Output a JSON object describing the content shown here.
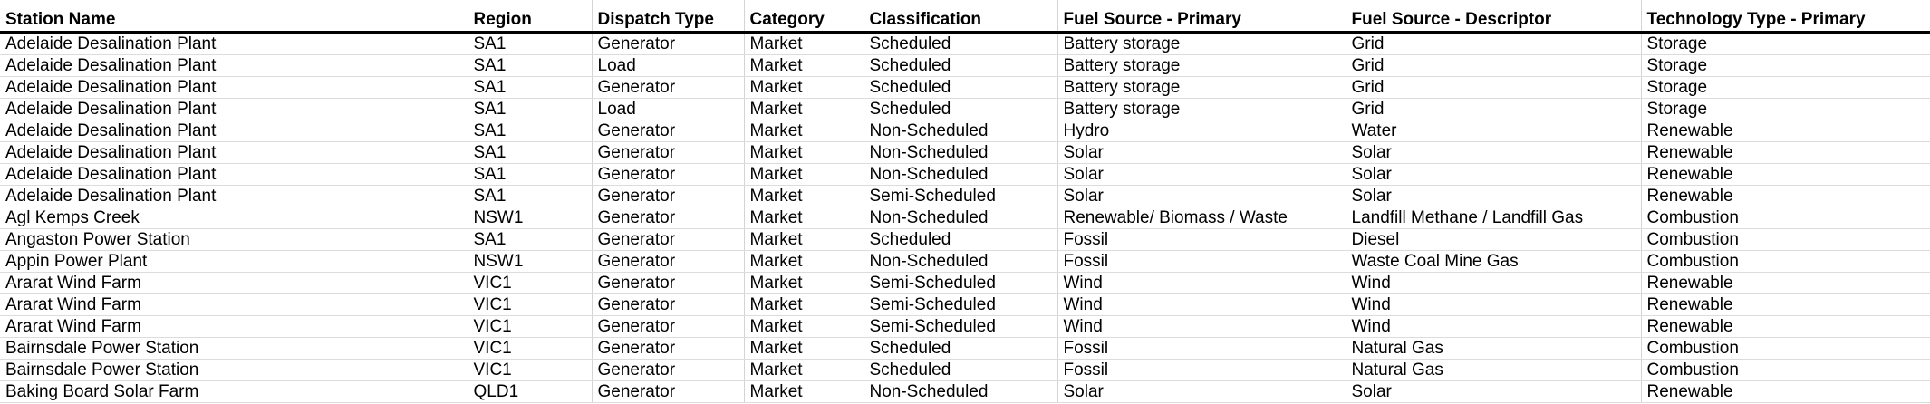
{
  "sheet": {
    "headers": [
      "Station Name",
      "Region",
      "Dispatch Type",
      "Category",
      "Classification",
      "Fuel Source - Primary",
      "Fuel Source - Descriptor",
      "Technology Type - Primary"
    ],
    "rows": [
      [
        "Adelaide Desalination Plant",
        "SA1",
        "Generator",
        "Market",
        "Scheduled",
        "Battery storage",
        "Grid",
        "Storage"
      ],
      [
        "Adelaide Desalination Plant",
        "SA1",
        "Load",
        "Market",
        "Scheduled",
        "Battery storage",
        "Grid",
        "Storage"
      ],
      [
        "Adelaide Desalination Plant",
        "SA1",
        "Generator",
        "Market",
        "Scheduled",
        "Battery storage",
        "Grid",
        "Storage"
      ],
      [
        "Adelaide Desalination Plant",
        "SA1",
        "Load",
        "Market",
        "Scheduled",
        "Battery storage",
        "Grid",
        "Storage"
      ],
      [
        "Adelaide Desalination Plant",
        "SA1",
        "Generator",
        "Market",
        "Non-Scheduled",
        "Hydro",
        "Water",
        "Renewable"
      ],
      [
        "Adelaide Desalination Plant",
        "SA1",
        "Generator",
        "Market",
        "Non-Scheduled",
        "Solar",
        "Solar",
        "Renewable"
      ],
      [
        "Adelaide Desalination Plant",
        "SA1",
        "Generator",
        "Market",
        "Non-Scheduled",
        "Solar",
        "Solar",
        "Renewable"
      ],
      [
        "Adelaide Desalination Plant",
        "SA1",
        "Generator",
        "Market",
        "Semi-Scheduled",
        "Solar",
        "Solar",
        "Renewable"
      ],
      [
        "Agl Kemps Creek",
        "NSW1",
        "Generator",
        "Market",
        "Non-Scheduled",
        "Renewable/ Biomass / Waste",
        "Landfill Methane / Landfill Gas",
        "Combustion"
      ],
      [
        "Angaston Power Station",
        "SA1",
        "Generator",
        "Market",
        "Scheduled",
        "Fossil",
        "Diesel",
        "Combustion"
      ],
      [
        "Appin Power Plant",
        "NSW1",
        "Generator",
        "Market",
        "Non-Scheduled",
        "Fossil",
        "Waste Coal Mine Gas",
        "Combustion"
      ],
      [
        "Ararat Wind Farm",
        "VIC1",
        "Generator",
        "Market",
        "Semi-Scheduled",
        "Wind",
        "Wind",
        "Renewable"
      ],
      [
        "Ararat Wind Farm",
        "VIC1",
        "Generator",
        "Market",
        "Semi-Scheduled",
        "Wind",
        "Wind",
        "Renewable"
      ],
      [
        "Ararat Wind Farm",
        "VIC1",
        "Generator",
        "Market",
        "Semi-Scheduled",
        "Wind",
        "Wind",
        "Renewable"
      ],
      [
        "Bairnsdale Power Station",
        "VIC1",
        "Generator",
        "Market",
        "Scheduled",
        "Fossil",
        "Natural Gas",
        "Combustion"
      ],
      [
        "Bairnsdale Power Station",
        "VIC1",
        "Generator",
        "Market",
        "Scheduled",
        "Fossil",
        "Natural Gas",
        "Combustion"
      ],
      [
        "Baking Board Solar Farm",
        "QLD1",
        "Generator",
        "Market",
        "Non-Scheduled",
        "Solar",
        "Solar",
        "Renewable"
      ]
    ]
  }
}
